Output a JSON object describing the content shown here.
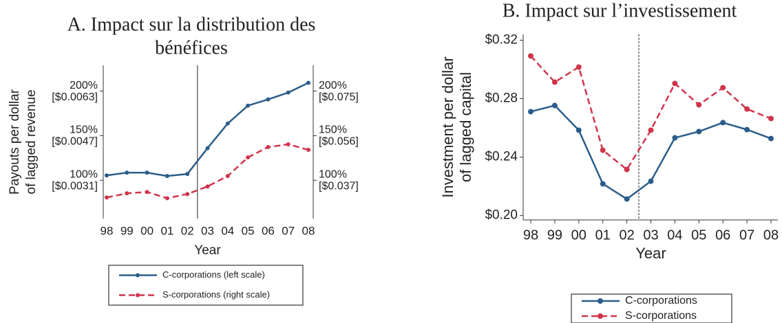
{
  "chart_data": [
    {
      "type": "line",
      "title": [
        "A. Impact sur la distribution des",
        "bénéfices"
      ],
      "y_label": [
        "Payouts per dollar",
        "of lagged revenue"
      ],
      "x_label": "Year",
      "categories": [
        "98",
        "99",
        "00",
        "01",
        "02",
        "03",
        "04",
        "05",
        "06",
        "07",
        "08"
      ],
      "ylim": [
        57,
        229
      ],
      "yticks": [
        {
          "value": 100,
          "label": "100%",
          "sublabel": "[$0.0031]"
        },
        {
          "value": 150,
          "label": "150%",
          "sublabel": "[$0.0047]"
        },
        {
          "value": 200,
          "label": "200%",
          "sublabel": "[$0.0063]"
        }
      ],
      "y2lim": [
        57,
        229
      ],
      "y2ticks": [
        {
          "value": 100,
          "label": "100%",
          "sublabel": "[$0.037]"
        },
        {
          "value": 150,
          "label": "150%",
          "sublabel": "[$0.056]"
        },
        {
          "value": 200,
          "label": "200%",
          "sublabel": "[$0.075]"
        }
      ],
      "vline_between": [
        "02",
        "03"
      ],
      "series": [
        {
          "name": "C-corporations (left scale)",
          "color": "#2b5d8a",
          "line_style": "solid",
          "values": [
            105.4,
            108.5,
            108.5,
            104.7,
            107,
            136,
            163.6,
            183.7,
            190.7,
            198.4,
            209.3
          ]
        },
        {
          "name": "S-corporations (right scale)",
          "color": "#d0344b",
          "line_style": "dashed",
          "axis": "y2",
          "values": [
            80.6,
            85.3,
            86.8,
            79.8,
            84.5,
            93,
            104.7,
            125.6,
            137.2,
            140.3,
            134.1
          ]
        }
      ]
    },
    {
      "type": "line",
      "title": [
        "B. Impact sur l’investissement"
      ],
      "y_label": [
        "Investment per dollar",
        "of lagged capital"
      ],
      "x_label": "Year",
      "categories": [
        "98",
        "99",
        "00",
        "01",
        "02",
        "03",
        "04",
        "05",
        "06",
        "07",
        "08"
      ],
      "ylim": [
        0.197,
        0.324
      ],
      "yticks": [
        {
          "value": 0.2,
          "label": "$0.20"
        },
        {
          "value": 0.24,
          "label": "$0.24"
        },
        {
          "value": 0.28,
          "label": "$0.28"
        },
        {
          "value": 0.32,
          "label": "$0.32"
        }
      ],
      "vline_between": [
        "02",
        "03"
      ],
      "series": [
        {
          "name": "C-corporations",
          "color": "#2b5d8a",
          "line_style": "solid",
          "values": [
            0.2711,
            0.2753,
            0.2584,
            0.2217,
            0.2113,
            0.2235,
            0.2532,
            0.2575,
            0.2636,
            0.2588,
            0.2527
          ]
        },
        {
          "name": "S-corporations",
          "color": "#d0344b",
          "line_style": "dashed",
          "values": [
            0.3092,
            0.2913,
            0.3016,
            0.2447,
            0.2315,
            0.2584,
            0.2904,
            0.2758,
            0.2875,
            0.2729,
            0.2664
          ]
        }
      ]
    }
  ]
}
